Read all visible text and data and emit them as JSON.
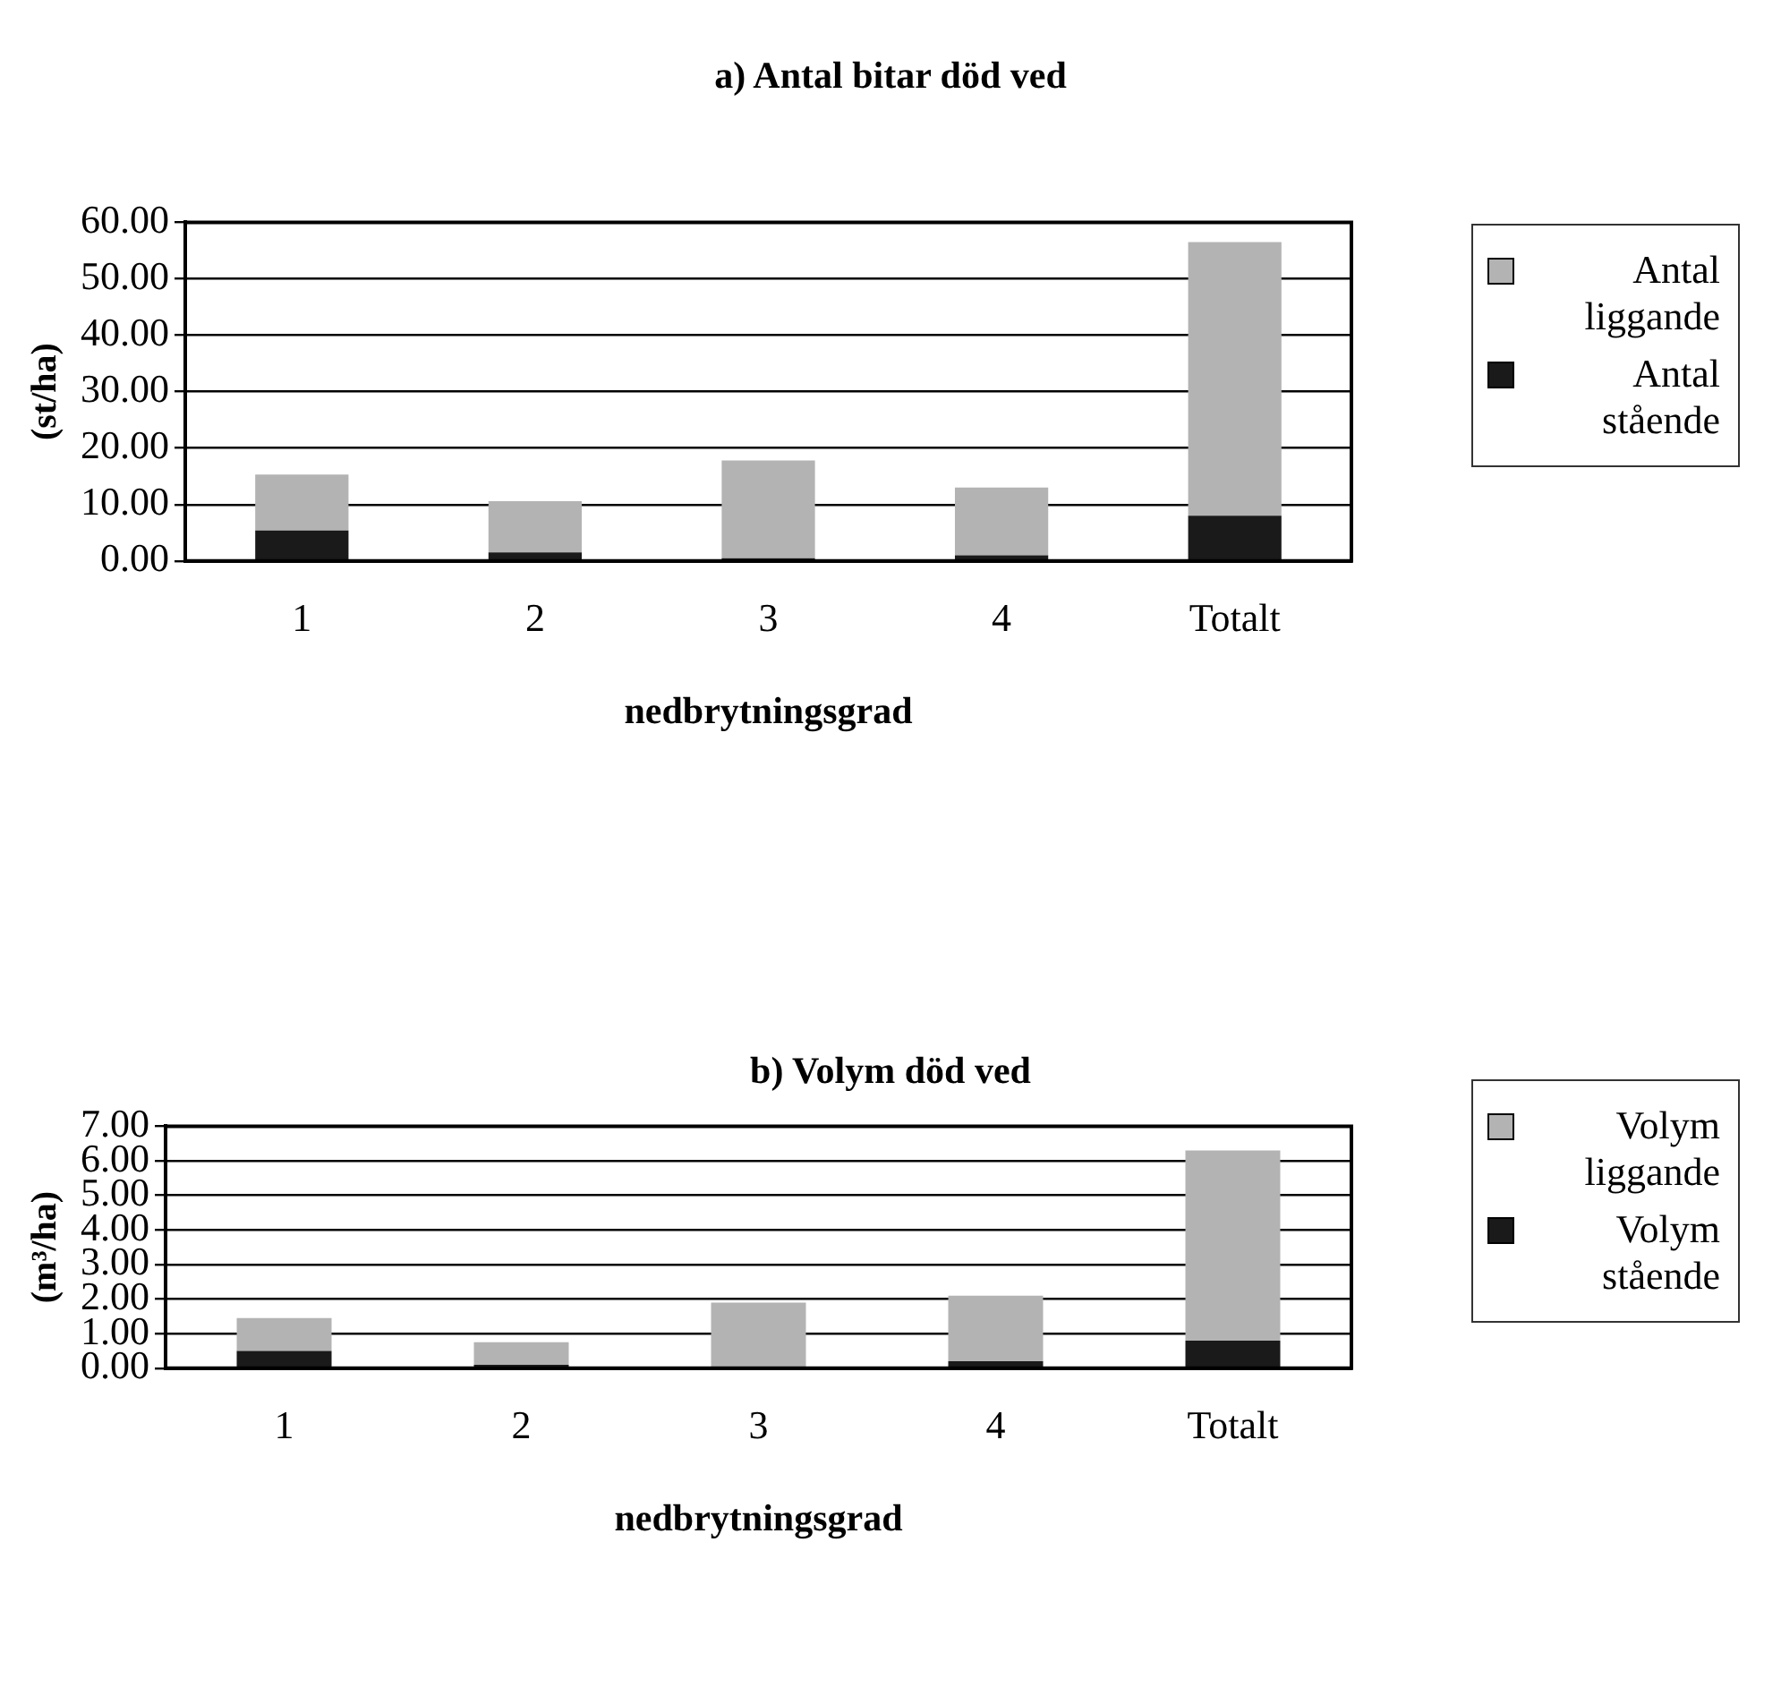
{
  "chart_data": [
    {
      "type": "bar",
      "title": "a) Antal bitar död ved",
      "xlabel": "nedbrytningsgrad",
      "ylabel": "(st/ha)",
      "categories": [
        "1",
        "2",
        "3",
        "4",
        "Totalt"
      ],
      "stacked": true,
      "series": [
        {
          "name": "Antal stående",
          "color": "#1a1a1a",
          "values": [
            5.4,
            1.5,
            0.5,
            1.0,
            8.0
          ]
        },
        {
          "name": "Antal liggande",
          "color": "#b3b3b3",
          "values": [
            9.9,
            9.1,
            17.3,
            12.0,
            48.5
          ]
        }
      ],
      "ylim": [
        0,
        60
      ],
      "yticks": [
        {
          "value": 0,
          "label": "0.00"
        },
        {
          "value": 10,
          "label": "10.00"
        },
        {
          "value": 20,
          "label": "20.00"
        },
        {
          "value": 30,
          "label": "30.00"
        },
        {
          "value": 40,
          "label": "40.00"
        },
        {
          "value": 50,
          "label": "50.00"
        },
        {
          "value": 60,
          "label": "60.00"
        }
      ],
      "grid": "y",
      "legend": "right"
    },
    {
      "type": "bar",
      "title": "b) Volym död ved",
      "xlabel": "nedbrytningsgrad",
      "ylabel": "(m³/ha)",
      "categories": [
        "1",
        "2",
        "3",
        "4",
        "Totalt"
      ],
      "stacked": true,
      "series": [
        {
          "name": "Volym stående",
          "color": "#1a1a1a",
          "values": [
            0.5,
            0.1,
            null,
            0.2,
            0.8
          ]
        },
        {
          "name": "Volym liggande",
          "color": "#b3b3b3",
          "values": [
            0.95,
            0.65,
            1.9,
            1.9,
            5.5
          ]
        }
      ],
      "ylim": [
        0,
        7
      ],
      "yticks": [
        {
          "value": 0,
          "label": "0.00"
        },
        {
          "value": 1,
          "label": "1.00"
        },
        {
          "value": 2,
          "label": "2.00"
        },
        {
          "value": 3,
          "label": "3.00"
        },
        {
          "value": 4,
          "label": "4.00"
        },
        {
          "value": 5,
          "label": "5.00"
        },
        {
          "value": 6,
          "label": "6.00"
        },
        {
          "value": 7,
          "label": "7.00"
        }
      ],
      "grid": "y",
      "legend": "right"
    }
  ]
}
